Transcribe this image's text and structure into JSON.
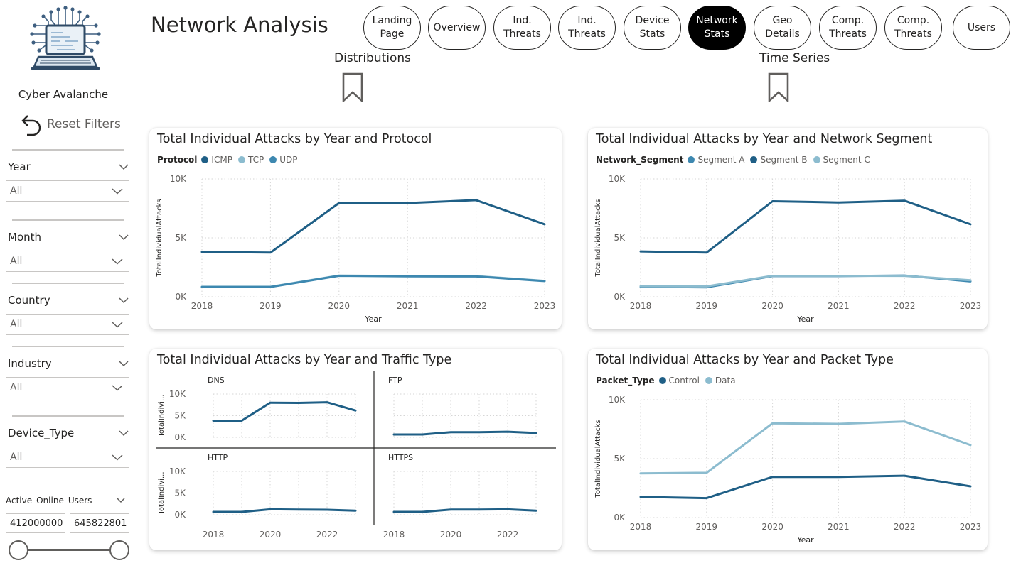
{
  "brand": "Cyber Avalanche",
  "reset_label": "Reset Filters",
  "page_title": "Network Analysis",
  "nav": [
    {
      "line1": "Landing",
      "line2": "Page",
      "active": false
    },
    {
      "line1": "Overview",
      "line2": "",
      "active": false
    },
    {
      "line1": "Ind.",
      "line2": "Threats",
      "active": false
    },
    {
      "line1": "Ind.",
      "line2": "Threats",
      "active": false
    },
    {
      "line1": "Device",
      "line2": "Stats",
      "active": false
    },
    {
      "line1": "Network",
      "line2": "Stats",
      "active": true
    },
    {
      "line1": "Geo",
      "line2": "Details",
      "active": false
    },
    {
      "line1": "Comp.",
      "line2": "Threats",
      "active": false
    },
    {
      "line1": "Comp.",
      "line2": "Threats",
      "active": false
    },
    {
      "line1": "Users",
      "line2": "",
      "active": false
    }
  ],
  "bookmarks": {
    "left": "Distributions",
    "right": "Time Series"
  },
  "filters": [
    {
      "label": "Year",
      "value": "All"
    },
    {
      "label": "Month",
      "value": "All"
    },
    {
      "label": "Country",
      "value": "All"
    },
    {
      "label": "Industry",
      "value": "All"
    },
    {
      "label": "Device_Type",
      "value": "All"
    }
  ],
  "range_filter": {
    "label": "Active_Online_Users",
    "min": "412000000",
    "max": "645822801"
  },
  "colors": {
    "dark": "#1f5f86",
    "mid": "#3d88b0",
    "light": "#8cbccf"
  },
  "chart_data": [
    {
      "id": "protocol",
      "type": "line",
      "title": "Total Individual Attacks by Year and Protocol",
      "legend_title": "Protocol",
      "xlabel": "Year",
      "ylabel": "TotalIndividualAttacks",
      "ylim": [
        0,
        10000
      ],
      "yticks": [
        "0K",
        "5K",
        "10K"
      ],
      "x": [
        "2018",
        "2019",
        "2020",
        "2021",
        "2022",
        "2023"
      ],
      "series": [
        {
          "name": "ICMP",
          "color": "#1f5f86",
          "values": [
            3800,
            3750,
            7950,
            7950,
            8200,
            6150
          ]
        },
        {
          "name": "TCP",
          "color": "#8cbccf",
          "values": [
            850,
            850,
            1800,
            1750,
            1750,
            1350
          ]
        },
        {
          "name": "UDP",
          "color": "#3d88b0",
          "values": [
            830,
            830,
            1780,
            1730,
            1720,
            1330
          ]
        }
      ]
    },
    {
      "id": "segment",
      "type": "line",
      "title": "Total Individual Attacks by Year and Network Segment",
      "legend_title": "Network_Segment",
      "xlabel": "Year",
      "ylabel": "TotalIndividualAttacks",
      "ylim": [
        0,
        10000
      ],
      "yticks": [
        "0K",
        "5K",
        "10K"
      ],
      "x": [
        "2018",
        "2019",
        "2020",
        "2021",
        "2022",
        "2023"
      ],
      "series": [
        {
          "name": "Segment A",
          "color": "#3d88b0",
          "values": [
            850,
            800,
            1750,
            1750,
            1800,
            1300
          ]
        },
        {
          "name": "Segment B",
          "color": "#1f5f86",
          "values": [
            3850,
            3750,
            8100,
            8000,
            8150,
            6150
          ]
        },
        {
          "name": "Segment C",
          "color": "#8cbccf",
          "values": [
            900,
            880,
            1780,
            1780,
            1770,
            1400
          ]
        }
      ]
    },
    {
      "id": "traffic",
      "type": "line",
      "title": "Total Individual Attacks by Year and Traffic Type",
      "ylabel": "TotalIndivi...",
      "ylim": [
        0,
        10000
      ],
      "yticks": [
        "0K",
        "5K",
        "10K"
      ],
      "x": [
        "2018",
        "2019",
        "2020",
        "2021",
        "2022",
        "2023"
      ],
      "xticks": [
        "2018",
        "2020",
        "2022"
      ],
      "panels": [
        {
          "name": "DNS",
          "values": [
            3850,
            3850,
            8000,
            7950,
            8100,
            6200
          ]
        },
        {
          "name": "FTP",
          "values": [
            650,
            650,
            1200,
            1200,
            1300,
            1000
          ]
        },
        {
          "name": "HTTP",
          "values": [
            650,
            650,
            1250,
            1200,
            1150,
            950
          ]
        },
        {
          "name": "HTTPS",
          "values": [
            650,
            650,
            1200,
            1200,
            1250,
            950
          ]
        }
      ]
    },
    {
      "id": "packet",
      "type": "line",
      "title": "Total Individual Attacks by Year and Packet Type",
      "legend_title": "Packet_Type",
      "xlabel": "Year",
      "ylabel": "TotalIndividualAttacks",
      "ylim": [
        0,
        10000
      ],
      "yticks": [
        "0K",
        "5K",
        "10K"
      ],
      "x": [
        "2018",
        "2019",
        "2020",
        "2021",
        "2022",
        "2023"
      ],
      "series": [
        {
          "name": "Control",
          "color": "#1f5f86",
          "values": [
            1750,
            1650,
            3450,
            3450,
            3550,
            2650
          ]
        },
        {
          "name": "Data",
          "color": "#8cbccf",
          "values": [
            3750,
            3800,
            8000,
            7950,
            8150,
            6150
          ]
        }
      ]
    }
  ]
}
